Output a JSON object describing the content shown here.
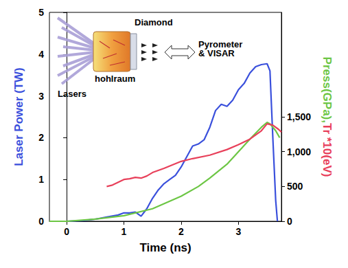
{
  "chart_data": {
    "type": "line",
    "xlabel": "Time (ns)",
    "ylabel": "Laser Power (TW)",
    "y2label": [
      "Press(GPa),",
      "Tr *10(eV)"
    ],
    "xlim": [
      -0.3,
      3.75
    ],
    "xticks": [
      0,
      1,
      2,
      3
    ],
    "ylim": [
      0,
      5
    ],
    "yticks": [
      0,
      1,
      2,
      3,
      4,
      5
    ],
    "y2lim": [
      0,
      3000
    ],
    "y2ticks": [
      0,
      500,
      1000,
      1500
    ],
    "grid": false,
    "series": [
      {
        "color": "#3a50dc",
        "x": [
          -0.3,
          0,
          0.3,
          0.5,
          0.7,
          0.9,
          1.0,
          1.1,
          1.2,
          1.3,
          1.4,
          1.5,
          1.6,
          1.7,
          1.8,
          1.9,
          2.0,
          2.1,
          2.2,
          2.3,
          2.4,
          2.5,
          2.6,
          2.7,
          2.8,
          2.9,
          3.0,
          3.1,
          3.2,
          3.3,
          3.4,
          3.5,
          3.55,
          3.6,
          3.65,
          3.68
        ],
        "values": [
          0,
          0,
          0.02,
          0.05,
          0.1,
          0.15,
          0.2,
          0.2,
          0.22,
          0.12,
          0.3,
          0.55,
          0.75,
          0.9,
          1.0,
          1.1,
          1.3,
          1.55,
          1.8,
          1.85,
          1.95,
          2.25,
          2.65,
          2.8,
          2.75,
          2.9,
          3.15,
          3.3,
          3.55,
          3.7,
          3.75,
          3.77,
          3.6,
          2.0,
          0.5,
          0
        ]
      },
      {
        "color": "#6cc644",
        "axis": "y2",
        "x": [
          -0.3,
          0,
          0.5,
          1.0,
          1.5,
          2.0,
          2.3,
          2.5,
          2.8,
          3.0,
          3.2,
          3.4,
          3.5,
          3.55,
          3.65,
          3.72
        ],
        "values": [
          0,
          0,
          30,
          80,
          180,
          360,
          500,
          620,
          820,
          1000,
          1180,
          1350,
          1420,
          1400,
          1300,
          1200
        ]
      },
      {
        "color": "#e8405a",
        "axis": "y2",
        "x": [
          0.7,
          0.8,
          0.9,
          1.0,
          1.1,
          1.2,
          1.3,
          1.4,
          1.5,
          1.7,
          2.0,
          2.2,
          2.5,
          2.8,
          3.0,
          3.2,
          3.4,
          3.5,
          3.6,
          3.7,
          3.75
        ],
        "values": [
          500,
          520,
          560,
          600,
          610,
          630,
          620,
          650,
          700,
          760,
          860,
          900,
          950,
          1030,
          1100,
          1180,
          1300,
          1400,
          1380,
          1320,
          1280
        ]
      }
    ],
    "annotations": [
      "Lasers",
      "hohlraum",
      "Diamond",
      "Pyrometer & VISAR"
    ]
  }
}
